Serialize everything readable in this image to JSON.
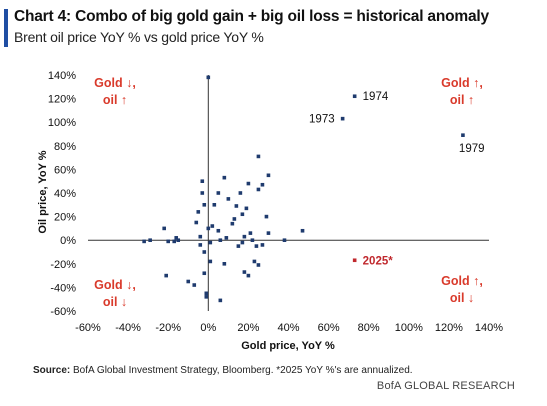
{
  "header": {
    "title": "Chart 4: Combo of big gold gain + big oil loss = historical anomaly",
    "subtitle": "Brent oil price YoY % vs gold price YoY %"
  },
  "footer": {
    "source_label": "Source:",
    "source_text": " BofA Global Investment Strategy, Bloomberg. *2025 YoY %'s are annualized.",
    "brand": "BofA GLOBAL RESEARCH"
  },
  "colors": {
    "point": "#1f3b6e",
    "highlight": "#c0282d",
    "quadrant_label": "#d93a2b",
    "axis": "#333333"
  },
  "chart_data": {
    "type": "scatter",
    "xlabel": "Gold price, YoY %",
    "ylabel": "Oil price, YoY %",
    "xlim": [
      -60,
      140
    ],
    "ylim": [
      -60,
      140
    ],
    "x_ticks": [
      -60,
      -40,
      -20,
      0,
      20,
      40,
      60,
      80,
      100,
      120,
      140
    ],
    "y_ticks": [
      -60,
      -40,
      -20,
      0,
      20,
      40,
      60,
      80,
      100,
      120,
      140
    ],
    "x_tick_labels": [
      "-60%",
      "-40%",
      "-20%",
      "0%",
      "20%",
      "40%",
      "60%",
      "80%",
      "100%",
      "120%",
      "140%"
    ],
    "y_tick_labels": [
      "-60%",
      "-40%",
      "-20%",
      "0%",
      "20%",
      "40%",
      "60%",
      "80%",
      "100%",
      "120%",
      "140%"
    ],
    "grid": false,
    "quadrant_labels": [
      {
        "line1": "Gold ↓,",
        "line2": "oil ↑",
        "position": "top-left"
      },
      {
        "line1": "Gold ↑,",
        "line2": "oil ↑",
        "position": "top-right"
      },
      {
        "line1": "Gold ↓,",
        "line2": "oil ↓",
        "position": "bottom-left"
      },
      {
        "line1": "Gold ↑,",
        "line2": "oil ↓",
        "position": "bottom-right"
      }
    ],
    "points": [
      {
        "x": -32,
        "y": -1
      },
      {
        "x": -29,
        "y": 0
      },
      {
        "x": -22,
        "y": 10
      },
      {
        "x": -20,
        "y": -1
      },
      {
        "x": -17,
        "y": -1
      },
      {
        "x": -16,
        "y": 2
      },
      {
        "x": -15,
        "y": 0
      },
      {
        "x": -21,
        "y": -30
      },
      {
        "x": -10,
        "y": -35
      },
      {
        "x": -7,
        "y": -38
      },
      {
        "x": -6,
        "y": 15
      },
      {
        "x": -5,
        "y": 24
      },
      {
        "x": -4,
        "y": 3
      },
      {
        "x": -4,
        "y": -4
      },
      {
        "x": -3,
        "y": 40
      },
      {
        "x": -3,
        "y": 50
      },
      {
        "x": -2,
        "y": -10
      },
      {
        "x": -2,
        "y": -28
      },
      {
        "x": -2,
        "y": 30
      },
      {
        "x": -1,
        "y": -45
      },
      {
        "x": -1,
        "y": -48
      },
      {
        "x": 0,
        "y": 138
      },
      {
        "x": 0,
        "y": 10
      },
      {
        "x": 1,
        "y": -2
      },
      {
        "x": 1,
        "y": -18
      },
      {
        "x": 2,
        "y": 12
      },
      {
        "x": 3,
        "y": 30
      },
      {
        "x": 5,
        "y": 8
      },
      {
        "x": 5,
        "y": 40
      },
      {
        "x": 6,
        "y": 0
      },
      {
        "x": 6,
        "y": -51
      },
      {
        "x": 8,
        "y": -20
      },
      {
        "x": 8,
        "y": 53
      },
      {
        "x": 9,
        "y": 2
      },
      {
        "x": 10,
        "y": 35
      },
      {
        "x": 12,
        "y": 14
      },
      {
        "x": 13,
        "y": 18
      },
      {
        "x": 14,
        "y": 29
      },
      {
        "x": 15,
        "y": -5
      },
      {
        "x": 16,
        "y": 40
      },
      {
        "x": 17,
        "y": 22
      },
      {
        "x": 17,
        "y": -2
      },
      {
        "x": 18,
        "y": 3
      },
      {
        "x": 18,
        "y": -27
      },
      {
        "x": 19,
        "y": 27
      },
      {
        "x": 20,
        "y": -30
      },
      {
        "x": 20,
        "y": 48
      },
      {
        "x": 21,
        "y": 6
      },
      {
        "x": 22,
        "y": 0
      },
      {
        "x": 23,
        "y": -18
      },
      {
        "x": 24,
        "y": -5
      },
      {
        "x": 25,
        "y": 71
      },
      {
        "x": 25,
        "y": 43
      },
      {
        "x": 25,
        "y": -21
      },
      {
        "x": 27,
        "y": -4
      },
      {
        "x": 27,
        "y": 47
      },
      {
        "x": 29,
        "y": 20
      },
      {
        "x": 30,
        "y": 55
      },
      {
        "x": 30,
        "y": 6
      },
      {
        "x": 38,
        "y": 0
      },
      {
        "x": 47,
        "y": 8
      },
      {
        "x": 67,
        "y": 103,
        "label": "1973"
      },
      {
        "x": 73,
        "y": 122,
        "label": "1974"
      },
      {
        "x": 127,
        "y": 89,
        "label": "1979"
      },
      {
        "x": 73,
        "y": -17,
        "label": "2025*",
        "highlight": true
      }
    ]
  }
}
